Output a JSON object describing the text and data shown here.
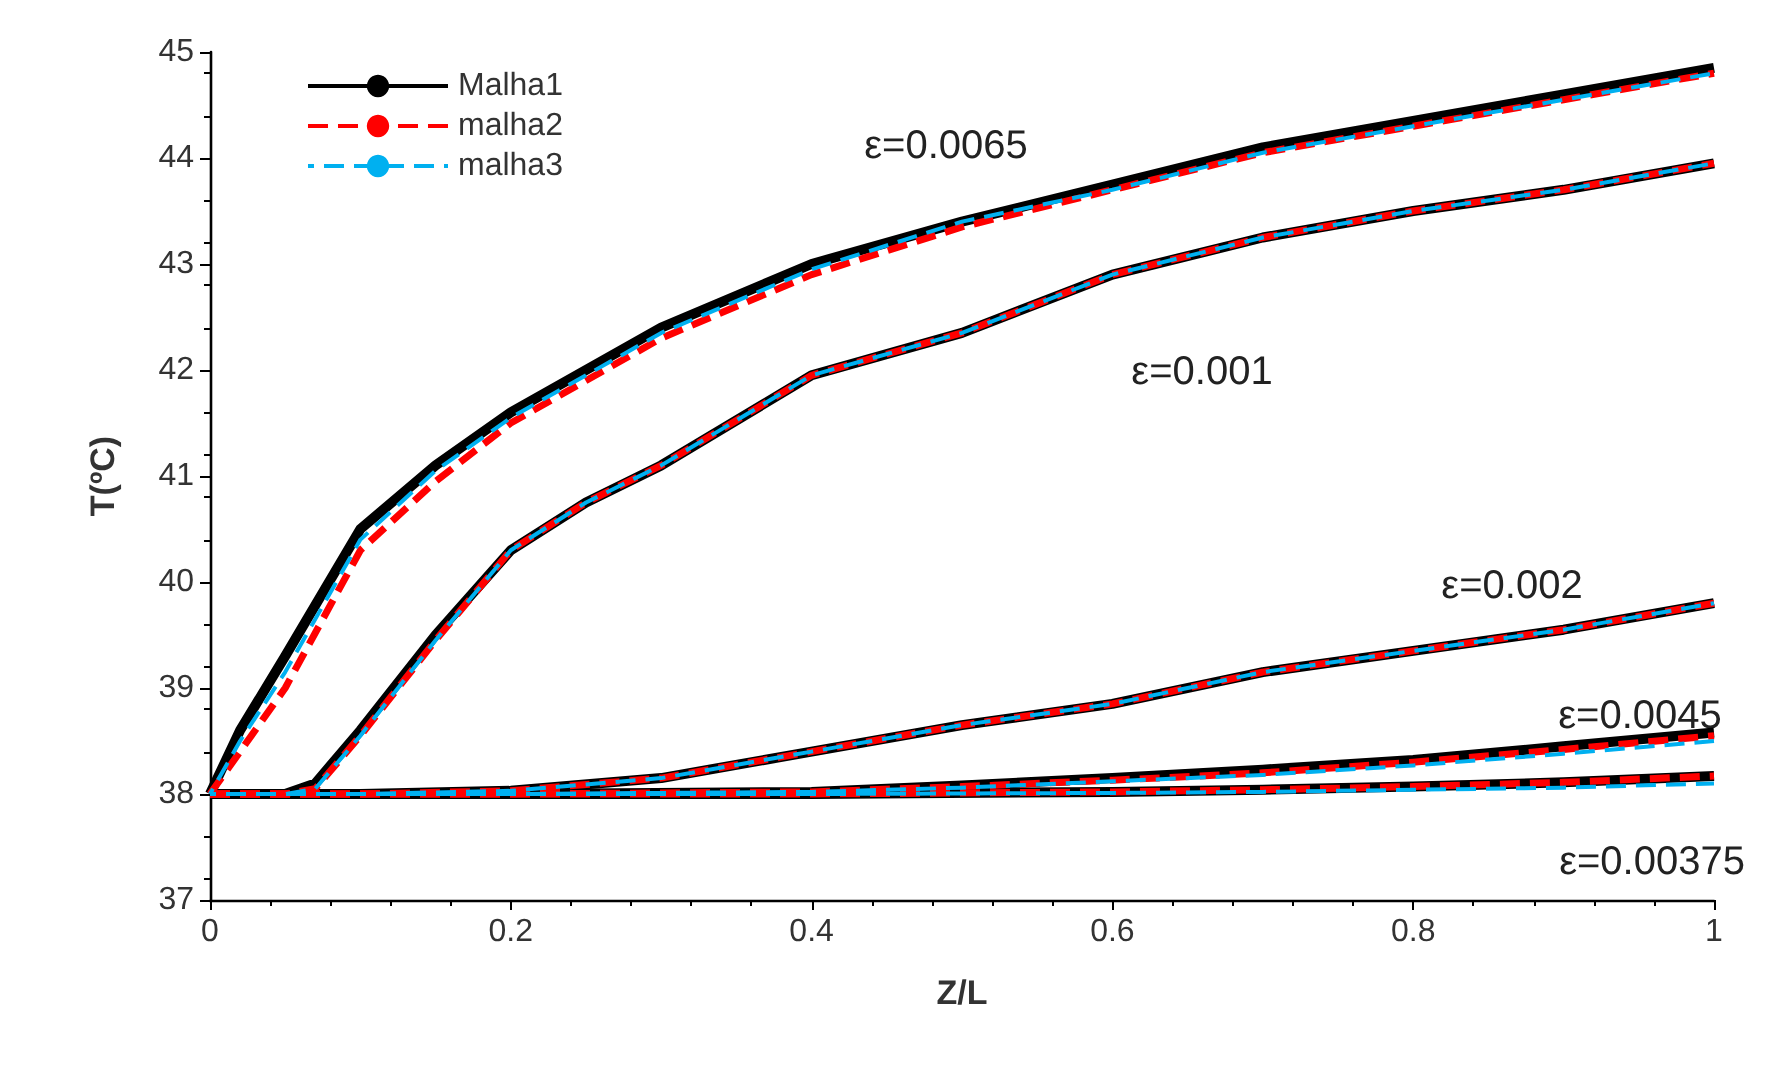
{
  "chart_data": {
    "type": "line",
    "xlabel": "Z/L",
    "ylabel": "T(ºC)",
    "xlim": [
      0,
      1
    ],
    "xticks": [
      0,
      0.2,
      0.4,
      0.6,
      0.8,
      1
    ],
    "ylim": [
      37,
      45
    ],
    "yticks": [
      37,
      38,
      39,
      40,
      41,
      42,
      43,
      44,
      45
    ],
    "grid": false,
    "legend": "top left",
    "marker": "none",
    "series": [
      {
        "name": "Malha1",
        "color": "#000000",
        "line_style": "solid",
        "x": [
          0,
          0.02,
          0.05,
          0.1,
          0.15,
          0.2,
          0.3,
          0.4,
          0.5,
          0.6,
          0.7,
          0.8,
          0.9,
          1
        ],
        "values": [
          38,
          38.6,
          39.3,
          40.5,
          41.1,
          41.6,
          42.4,
          43,
          43.4,
          43.75,
          44.1,
          44.35,
          44.6,
          44.85
        ]
      },
      {
        "name": "malha2",
        "color": "#ff0000",
        "line_style": "dashed",
        "x": [
          0,
          0.02,
          0.05,
          0.1,
          0.15,
          0.2,
          0.3,
          0.4,
          0.5,
          0.6,
          0.7,
          0.8,
          0.9,
          1
        ],
        "values": [
          38,
          38.4,
          39,
          40.3,
          40.95,
          41.5,
          42.3,
          42.9,
          43.35,
          43.7,
          44.05,
          44.3,
          44.55,
          44.8
        ]
      },
      {
        "name": "malha3",
        "color": "#00b0f0",
        "line_style": "dashed",
        "x": [
          0,
          0.02,
          0.05,
          0.1,
          0.15,
          0.2,
          0.3,
          0.4,
          0.5,
          0.6,
          0.7,
          0.8,
          0.9,
          1
        ],
        "values": [
          38,
          38.5,
          39.15,
          40.4,
          41.05,
          41.55,
          42.35,
          42.95,
          43.4,
          43.7,
          44.05,
          44.3,
          44.55,
          44.8
        ]
      },
      {
        "color": "#000000",
        "line_style": "solid",
        "x": [
          0,
          0.05,
          0.07,
          0.1,
          0.15,
          0.2,
          0.25,
          0.3,
          0.4,
          0.5,
          0.6,
          0.7,
          0.8,
          0.9,
          1
        ],
        "values": [
          38,
          38,
          38.1,
          38.6,
          39.5,
          40.3,
          40.75,
          41.1,
          41.95,
          42.35,
          42.9,
          43.25,
          43.5,
          43.7,
          43.95
        ]
      },
      {
        "color": "#ff0000",
        "line_style": "dashed",
        "x": [
          0,
          0.05,
          0.07,
          0.1,
          0.15,
          0.2,
          0.25,
          0.3,
          0.4,
          0.5,
          0.6,
          0.7,
          0.8,
          0.9,
          1
        ],
        "values": [
          38,
          38,
          38.05,
          38.55,
          39.45,
          40.3,
          40.75,
          41.1,
          41.95,
          42.35,
          42.9,
          43.25,
          43.5,
          43.7,
          43.95
        ]
      },
      {
        "color": "#00b0f0",
        "line_style": "dashed",
        "x": [
          0,
          0.05,
          0.07,
          0.1,
          0.15,
          0.2,
          0.25,
          0.3,
          0.4,
          0.5,
          0.6,
          0.7,
          0.8,
          0.9,
          1
        ],
        "values": [
          38,
          38,
          38.05,
          38.55,
          39.45,
          40.3,
          40.75,
          41.1,
          41.95,
          42.35,
          42.9,
          43.25,
          43.5,
          43.7,
          43.95
        ]
      },
      {
        "color": "#000000",
        "line_style": "solid",
        "x": [
          0,
          0.1,
          0.2,
          0.3,
          0.4,
          0.5,
          0.6,
          0.7,
          0.8,
          0.9,
          1
        ],
        "values": [
          38,
          38,
          38.03,
          38.15,
          38.4,
          38.65,
          38.85,
          39.15,
          39.35,
          39.55,
          39.8
        ]
      },
      {
        "color": "#ff0000",
        "line_style": "dashed",
        "x": [
          0,
          0.1,
          0.2,
          0.3,
          0.4,
          0.5,
          0.6,
          0.7,
          0.8,
          0.9,
          1
        ],
        "values": [
          38,
          38,
          38.03,
          38.15,
          38.4,
          38.65,
          38.85,
          39.15,
          39.35,
          39.55,
          39.8
        ]
      },
      {
        "color": "#00b0f0",
        "line_style": "dashed",
        "x": [
          0,
          0.1,
          0.2,
          0.3,
          0.4,
          0.5,
          0.6,
          0.7,
          0.8,
          0.9,
          1
        ],
        "values": [
          38,
          38,
          38.03,
          38.15,
          38.4,
          38.65,
          38.85,
          39.15,
          39.35,
          39.55,
          39.8
        ]
      },
      {
        "color": "#000000",
        "line_style": "solid",
        "x": [
          0,
          0.2,
          0.4,
          0.5,
          0.6,
          0.7,
          0.8,
          0.9,
          1
        ],
        "values": [
          38,
          38,
          38.02,
          38.08,
          38.15,
          38.23,
          38.32,
          38.45,
          38.58
        ]
      },
      {
        "color": "#ff0000",
        "line_style": "dashed",
        "x": [
          0,
          0.2,
          0.4,
          0.5,
          0.6,
          0.7,
          0.8,
          0.9,
          1
        ],
        "values": [
          38,
          38,
          38.02,
          38.07,
          38.13,
          38.2,
          38.3,
          38.42,
          38.55
        ]
      },
      {
        "color": "#00b0f0",
        "line_style": "dashed",
        "x": [
          0,
          0.2,
          0.4,
          0.5,
          0.6,
          0.7,
          0.8,
          0.9,
          1
        ],
        "values": [
          38,
          38,
          38.02,
          38.06,
          38.12,
          38.18,
          38.27,
          38.38,
          38.5
        ]
      },
      {
        "color": "#000000",
        "line_style": "solid",
        "x": [
          0,
          0.4,
          0.6,
          0.7,
          0.8,
          0.9,
          1
        ],
        "values": [
          38,
          38,
          38.02,
          38.04,
          38.07,
          38.11,
          38.17
        ]
      },
      {
        "color": "#ff0000",
        "line_style": "dashed",
        "x": [
          0,
          0.4,
          0.6,
          0.7,
          0.8,
          0.9,
          1
        ],
        "values": [
          38,
          38,
          38.02,
          38.04,
          38.07,
          38.11,
          38.17
        ]
      },
      {
        "color": "#00b0f0",
        "line_style": "dashed",
        "x": [
          0,
          0.4,
          0.6,
          0.7,
          0.8,
          0.9,
          1
        ],
        "values": [
          38,
          38,
          38.01,
          38.02,
          38.04,
          38.06,
          38.1
        ]
      }
    ],
    "annotations": [
      "ε=0.0065",
      "ε=0.001",
      "ε=0.002",
      "ε=0.0045",
      "ε=0.00375"
    ]
  }
}
